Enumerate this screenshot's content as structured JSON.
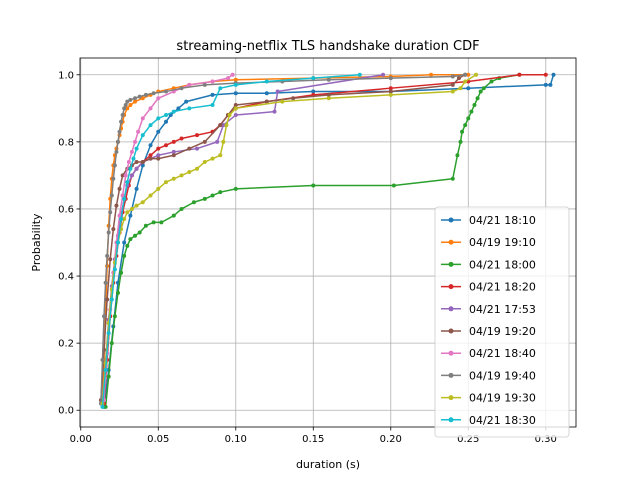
{
  "chart_data": {
    "type": "line",
    "title": "streaming-netflix TLS handshake duration CDF",
    "xlabel": "duration (s)",
    "ylabel": "Probability",
    "xlim": [
      -0.0005,
      0.3195
    ],
    "ylim": [
      -0.05,
      1.05
    ],
    "xticks": [
      0.0,
      0.05,
      0.1,
      0.15,
      0.2,
      0.25,
      0.3
    ],
    "xtick_labels": [
      "0.00",
      "0.05",
      "0.10",
      "0.15",
      "0.20",
      "0.25",
      "0.30"
    ],
    "yticks": [
      0.0,
      0.2,
      0.4,
      0.6,
      0.8,
      1.0
    ],
    "ytick_labels": [
      "0.0",
      "0.2",
      "0.4",
      "0.6",
      "0.8",
      "1.0"
    ],
    "grid": true,
    "legend_position": "lower-right",
    "series": [
      {
        "name": "04/21 18:10",
        "color": "#1f77b4",
        "x": [
          0.015,
          0.018,
          0.021,
          0.024,
          0.028,
          0.032,
          0.036,
          0.04,
          0.045,
          0.05,
          0.055,
          0.058,
          0.063,
          0.068,
          0.085,
          0.1,
          0.12,
          0.15,
          0.2,
          0.25,
          0.3,
          0.303,
          0.305
        ],
        "y": [
          0.01,
          0.12,
          0.25,
          0.38,
          0.5,
          0.58,
          0.66,
          0.73,
          0.79,
          0.83,
          0.86,
          0.88,
          0.9,
          0.92,
          0.94,
          0.945,
          0.945,
          0.95,
          0.95,
          0.96,
          0.97,
          0.97,
          1.0
        ]
      },
      {
        "name": "04/19 19:10",
        "color": "#ff7f0e",
        "x": [
          0.014,
          0.015,
          0.016,
          0.017,
          0.018,
          0.019,
          0.02,
          0.021,
          0.022,
          0.023,
          0.024,
          0.025,
          0.026,
          0.027,
          0.028,
          0.03,
          0.032,
          0.035,
          0.04,
          0.045,
          0.05,
          0.06,
          0.07,
          0.085,
          0.1,
          0.15,
          0.2,
          0.226,
          0.25
        ],
        "y": [
          0.02,
          0.15,
          0.3,
          0.43,
          0.55,
          0.63,
          0.69,
          0.73,
          0.76,
          0.78,
          0.8,
          0.82,
          0.84,
          0.86,
          0.88,
          0.9,
          0.91,
          0.92,
          0.93,
          0.94,
          0.95,
          0.96,
          0.97,
          0.98,
          0.985,
          0.99,
          0.995,
          1.0,
          1.0
        ]
      },
      {
        "name": "04/21 18:00",
        "color": "#2ca02c",
        "x": [
          0.016,
          0.018,
          0.02,
          0.022,
          0.024,
          0.026,
          0.028,
          0.03,
          0.032,
          0.035,
          0.038,
          0.042,
          0.047,
          0.052,
          0.06,
          0.065,
          0.073,
          0.08,
          0.085,
          0.09,
          0.1,
          0.15,
          0.202,
          0.24,
          0.243,
          0.245,
          0.246,
          0.248,
          0.25,
          0.252,
          0.254,
          0.256,
          0.258,
          0.26,
          0.265,
          0.27,
          0.283
        ],
        "y": [
          0.01,
          0.1,
          0.2,
          0.28,
          0.35,
          0.41,
          0.46,
          0.49,
          0.51,
          0.52,
          0.53,
          0.55,
          0.56,
          0.56,
          0.58,
          0.6,
          0.62,
          0.63,
          0.64,
          0.65,
          0.66,
          0.67,
          0.67,
          0.69,
          0.76,
          0.8,
          0.83,
          0.85,
          0.87,
          0.89,
          0.91,
          0.93,
          0.95,
          0.96,
          0.98,
          0.99,
          1.0
        ]
      },
      {
        "name": "04/21 18:20",
        "color": "#d62728",
        "x": [
          0.015,
          0.017,
          0.019,
          0.021,
          0.023,
          0.025,
          0.027,
          0.029,
          0.031,
          0.033,
          0.036,
          0.04,
          0.045,
          0.05,
          0.055,
          0.06,
          0.065,
          0.075,
          0.085,
          0.09,
          0.095,
          0.1,
          0.12,
          0.15,
          0.2,
          0.25,
          0.283,
          0.3
        ],
        "y": [
          0.02,
          0.15,
          0.28,
          0.38,
          0.46,
          0.53,
          0.59,
          0.63,
          0.67,
          0.7,
          0.72,
          0.74,
          0.76,
          0.78,
          0.79,
          0.8,
          0.81,
          0.82,
          0.83,
          0.85,
          0.88,
          0.9,
          0.92,
          0.94,
          0.96,
          0.98,
          1.0,
          1.0
        ]
      },
      {
        "name": "04/21 17:53",
        "color": "#9467bd",
        "x": [
          0.014,
          0.016,
          0.018,
          0.02,
          0.022,
          0.024,
          0.026,
          0.028,
          0.03,
          0.033,
          0.036,
          0.04,
          0.045,
          0.05,
          0.06,
          0.075,
          0.088,
          0.092,
          0.1,
          0.125,
          0.127,
          0.195
        ],
        "y": [
          0.02,
          0.14,
          0.27,
          0.37,
          0.45,
          0.52,
          0.58,
          0.63,
          0.67,
          0.7,
          0.72,
          0.74,
          0.75,
          0.76,
          0.77,
          0.78,
          0.8,
          0.85,
          0.88,
          0.89,
          0.95,
          1.0
        ]
      },
      {
        "name": "04/19 19:20",
        "color": "#8c564b",
        "x": [
          0.013,
          0.015,
          0.017,
          0.019,
          0.021,
          0.023,
          0.025,
          0.027,
          0.03,
          0.033,
          0.036,
          0.04,
          0.045,
          0.05,
          0.06,
          0.07,
          0.08,
          0.09,
          0.095,
          0.1,
          0.12,
          0.137,
          0.16,
          0.2,
          0.24,
          0.244,
          0.248
        ],
        "y": [
          0.03,
          0.18,
          0.33,
          0.45,
          0.54,
          0.61,
          0.66,
          0.7,
          0.72,
          0.73,
          0.74,
          0.74,
          0.75,
          0.75,
          0.76,
          0.78,
          0.8,
          0.85,
          0.88,
          0.91,
          0.92,
          0.93,
          0.94,
          0.95,
          0.97,
          0.99,
          1.0
        ]
      },
      {
        "name": "04/21 18:40",
        "color": "#e377c2",
        "x": [
          0.015,
          0.017,
          0.019,
          0.021,
          0.023,
          0.025,
          0.027,
          0.029,
          0.031,
          0.033,
          0.035,
          0.037,
          0.04,
          0.045,
          0.05,
          0.06,
          0.07,
          0.085,
          0.095,
          0.098
        ],
        "y": [
          0.03,
          0.17,
          0.3,
          0.41,
          0.5,
          0.58,
          0.64,
          0.7,
          0.74,
          0.77,
          0.8,
          0.83,
          0.87,
          0.9,
          0.93,
          0.95,
          0.97,
          0.98,
          0.99,
          1.0
        ]
      },
      {
        "name": "04/19 19:40",
        "color": "#7f7f7f",
        "x": [
          0.013,
          0.014,
          0.015,
          0.016,
          0.017,
          0.018,
          0.019,
          0.02,
          0.021,
          0.022,
          0.023,
          0.024,
          0.025,
          0.026,
          0.027,
          0.028,
          0.029,
          0.03,
          0.032,
          0.035,
          0.038,
          0.042,
          0.047,
          0.055,
          0.065,
          0.08,
          0.1,
          0.13,
          0.16,
          0.2,
          0.24,
          0.248
        ],
        "y": [
          0.02,
          0.15,
          0.28,
          0.38,
          0.46,
          0.53,
          0.59,
          0.64,
          0.69,
          0.73,
          0.77,
          0.8,
          0.83,
          0.86,
          0.88,
          0.9,
          0.91,
          0.92,
          0.925,
          0.93,
          0.935,
          0.94,
          0.945,
          0.95,
          0.96,
          0.97,
          0.975,
          0.98,
          0.985,
          0.99,
          0.995,
          1.0
        ]
      },
      {
        "name": "04/19 19:30",
        "color": "#bcbd22",
        "x": [
          0.014,
          0.016,
          0.018,
          0.02,
          0.022,
          0.024,
          0.026,
          0.028,
          0.03,
          0.033,
          0.036,
          0.04,
          0.045,
          0.05,
          0.055,
          0.06,
          0.065,
          0.07,
          0.075,
          0.08,
          0.085,
          0.09,
          0.092,
          0.094,
          0.096,
          0.1,
          0.13,
          0.16,
          0.2,
          0.24,
          0.245,
          0.248,
          0.255
        ],
        "y": [
          0.02,
          0.14,
          0.26,
          0.36,
          0.44,
          0.5,
          0.54,
          0.57,
          0.59,
          0.6,
          0.61,
          0.62,
          0.64,
          0.66,
          0.68,
          0.69,
          0.7,
          0.71,
          0.72,
          0.74,
          0.75,
          0.76,
          0.8,
          0.85,
          0.88,
          0.9,
          0.92,
          0.93,
          0.94,
          0.95,
          0.96,
          0.98,
          1.0
        ]
      },
      {
        "name": "04/21 18:30",
        "color": "#17becf",
        "x": [
          0.014,
          0.016,
          0.018,
          0.02,
          0.022,
          0.024,
          0.026,
          0.028,
          0.03,
          0.032,
          0.034,
          0.036,
          0.04,
          0.045,
          0.05,
          0.055,
          0.06,
          0.07,
          0.085,
          0.09,
          0.1,
          0.12,
          0.15,
          0.18
        ],
        "y": [
          0.01,
          0.12,
          0.23,
          0.33,
          0.42,
          0.5,
          0.57,
          0.63,
          0.68,
          0.72,
          0.75,
          0.78,
          0.82,
          0.85,
          0.87,
          0.88,
          0.89,
          0.9,
          0.91,
          0.96,
          0.97,
          0.98,
          0.99,
          1.0
        ]
      }
    ]
  }
}
